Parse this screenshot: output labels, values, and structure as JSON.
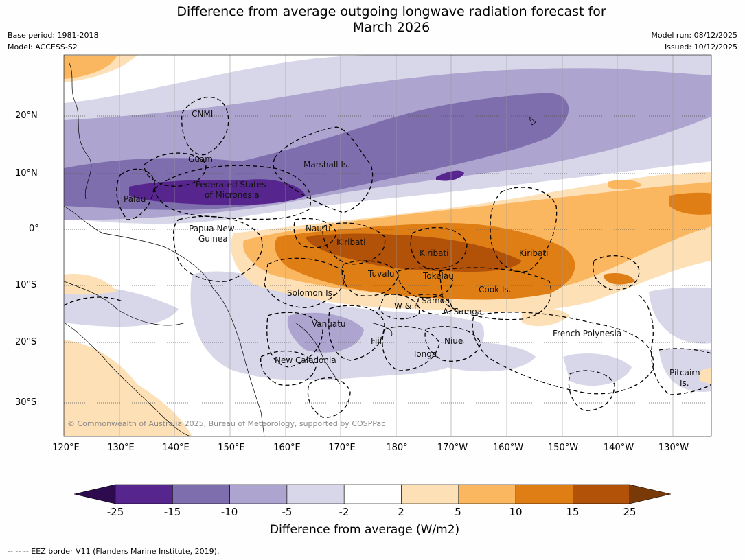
{
  "title_line1": "Difference from average outgoing longwave radiation forecast for",
  "title_line2": "March 2026",
  "base_period": "Base period: 1981-2018",
  "model": "Model: ACCESS-S2",
  "model_run": "Model run: 08/12/2025",
  "issued": "Issued: 10/12/2025",
  "lat_labels": [
    "20°N",
    "10°N",
    "0°",
    "10°S",
    "20°S",
    "30°S"
  ],
  "lon_labels": [
    "120°E",
    "130°E",
    "140°E",
    "150°E",
    "160°E",
    "170°E",
    "180°",
    "170°W",
    "160°W",
    "150°W",
    "140°W",
    "130°W"
  ],
  "regions": [
    "CNMI",
    "Guam",
    "Marshall Is.",
    "Federated States",
    "of Micronesia",
    "Palau",
    "Papua New",
    "Guinea",
    "Nauru",
    "Kiribati",
    "Kiribati",
    "Kiribati",
    "Tuvalu",
    "Tokelau",
    "Cook Is.",
    "Solomon Is.",
    "W & F",
    "Samoa",
    "A. Samoa",
    "Vanuatu",
    "Fiji",
    "Niue",
    "Tonga",
    "New Caledonia",
    "French Polynesia",
    "Pitcairn",
    "Is."
  ],
  "copyright": "© Commonwealth of Australia 2025, Bureau of Meteorology, supported by COSPPac",
  "colorbar": {
    "ticks": [
      "-25",
      "-15",
      "-10",
      "-5",
      "-2",
      "2",
      "5",
      "10",
      "15",
      "25"
    ],
    "colors": [
      "#2e0a4e",
      "#56268e",
      "#7f6eae",
      "#ada5cf",
      "#d8d7e9",
      "#ffffff",
      "#fde0b6",
      "#fbb660",
      "#df7e14",
      "#b25208",
      "#7a3a08"
    ],
    "title": "Difference from average (W/m2)"
  },
  "footnote": "--  --  -- EEZ border V11 (Flanders Marine Institute, 2019)."
}
